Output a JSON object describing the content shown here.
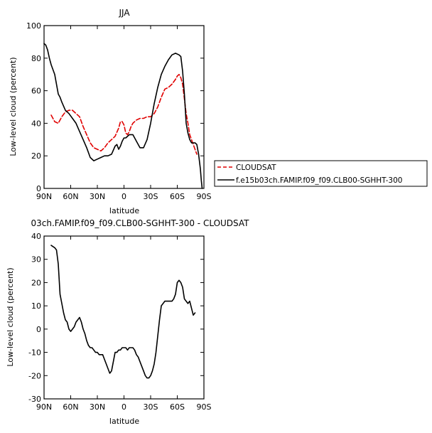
{
  "chart_data": [
    {
      "type": "line",
      "title": "JJA",
      "xlabel": "latitude",
      "ylabel": "Low-level cloud (percent)",
      "xlim": [
        90,
        -90
      ],
      "ylim": [
        0,
        100
      ],
      "x_ticks": [
        90,
        60,
        30,
        0,
        -30,
        -60,
        -90
      ],
      "x_tick_labels": [
        "90N",
        "60N",
        "30N",
        "0",
        "30S",
        "60S",
        "90S"
      ],
      "y_ticks": [
        0,
        20,
        40,
        60,
        80,
        100
      ],
      "y_tick_labels": [
        "0",
        "20",
        "40",
        "60",
        "80",
        "100"
      ],
      "legend_position": "right-outside",
      "series": [
        {
          "name": "CLOUDSAT",
          "color": "#e00000",
          "style": "dashed",
          "x": [
            82,
            78,
            74,
            70,
            66,
            62,
            58,
            54,
            50,
            46,
            42,
            38,
            34,
            30,
            26,
            22,
            18,
            14,
            10,
            6,
            4,
            2,
            0,
            -2,
            -4,
            -6,
            -8,
            -10,
            -14,
            -18,
            -22,
            -26,
            -30,
            -34,
            -38,
            -42,
            -46,
            -50,
            -54,
            -58,
            -60,
            -62,
            -64,
            -66,
            -68,
            -70,
            -72,
            -74,
            -78,
            -82
          ],
          "values": [
            45,
            41,
            40,
            44,
            47,
            48,
            48,
            46,
            44,
            38,
            33,
            28,
            25,
            24,
            23,
            25,
            28,
            30,
            32,
            37,
            41,
            41,
            39,
            34,
            33,
            35,
            38,
            40,
            42,
            43,
            43,
            44,
            44,
            46,
            50,
            56,
            61,
            62,
            64,
            67,
            69,
            70,
            68,
            64,
            55,
            46,
            40,
            33,
            27,
            21
          ]
        },
        {
          "name": "f.e15b03ch.FAMIP.f09_f09.CLB00-SGHHT-300",
          "color": "#000000",
          "style": "solid",
          "x": [
            90,
            88,
            86,
            84,
            82,
            78,
            74,
            72,
            70,
            66,
            62,
            58,
            54,
            50,
            46,
            42,
            38,
            34,
            30,
            26,
            22,
            18,
            14,
            10,
            8,
            6,
            4,
            2,
            0,
            -2,
            -6,
            -10,
            -14,
            -18,
            -22,
            -26,
            -30,
            -34,
            -38,
            -42,
            -46,
            -50,
            -54,
            -58,
            -62,
            -64,
            -66,
            -68,
            -70,
            -72,
            -74,
            -76,
            -78,
            -80,
            -82,
            -84,
            -86,
            -87,
            -88
          ],
          "values": [
            89,
            88,
            85,
            80,
            76,
            70,
            58,
            56,
            53,
            48,
            46,
            43,
            40,
            35,
            30,
            25,
            19,
            17,
            18,
            19,
            20,
            20,
            21,
            26,
            27,
            24,
            26,
            29,
            31,
            31,
            33,
            33,
            29,
            25,
            25,
            30,
            40,
            52,
            62,
            70,
            75,
            79,
            82,
            83,
            82,
            81,
            72,
            58,
            40,
            34,
            30,
            28,
            28,
            28,
            27,
            21,
            12,
            5,
            0
          ]
        }
      ]
    },
    {
      "type": "line",
      "title": "03ch.FAMIP.f09_f09.CLB00-SGHHT-300 - CLOUDSAT",
      "xlabel": "latitude",
      "ylabel": "Low-level cloud (percent)",
      "xlim": [
        90,
        -90
      ],
      "ylim": [
        -30,
        40
      ],
      "x_ticks": [
        90,
        60,
        30,
        0,
        -30,
        -60,
        -90
      ],
      "x_tick_labels": [
        "90N",
        "60N",
        "30N",
        "0",
        "30S",
        "60S",
        "90S"
      ],
      "y_ticks": [
        -30,
        -20,
        -10,
        0,
        10,
        20,
        30,
        40
      ],
      "y_tick_labels": [
        "-30",
        "-20",
        "-10",
        "0",
        "10",
        "20",
        "30",
        "40"
      ],
      "series": [
        {
          "color": "#000000",
          "style": "solid",
          "x": [
            82,
            78,
            76,
            74,
            72,
            70,
            68,
            66,
            64,
            62,
            60,
            58,
            56,
            54,
            52,
            50,
            48,
            46,
            44,
            42,
            40,
            38,
            36,
            34,
            32,
            30,
            28,
            26,
            24,
            22,
            20,
            18,
            16,
            14,
            12,
            10,
            8,
            6,
            4,
            2,
            0,
            -2,
            -4,
            -6,
            -8,
            -10,
            -12,
            -14,
            -16,
            -18,
            -20,
            -22,
            -24,
            -26,
            -28,
            -30,
            -32,
            -34,
            -36,
            -38,
            -40,
            -42,
            -44,
            -46,
            -48,
            -50,
            -52,
            -54,
            -56,
            -58,
            -60,
            -62,
            -64,
            -66,
            -68,
            -70,
            -72,
            -74,
            -76,
            -78,
            -80
          ],
          "values": [
            36,
            35,
            34,
            28,
            15,
            11,
            7,
            4,
            3,
            0,
            -1,
            0,
            1,
            3,
            4,
            5,
            3,
            0,
            -2,
            -5,
            -7,
            -8,
            -8,
            -9,
            -10,
            -10,
            -11,
            -11,
            -11,
            -13,
            -15,
            -17,
            -19,
            -18,
            -14,
            -10,
            -10,
            -9,
            -9,
            -8,
            -8,
            -8,
            -9,
            -8,
            -8,
            -8,
            -9,
            -11,
            -12,
            -14,
            -16,
            -18,
            -20,
            -21,
            -21,
            -20,
            -18,
            -15,
            -10,
            -3,
            4,
            10,
            11,
            12,
            12,
            12,
            12,
            12,
            13,
            15,
            20,
            21,
            20,
            18,
            13,
            12,
            11,
            12,
            9,
            6,
            7
          ]
        }
      ]
    }
  ]
}
